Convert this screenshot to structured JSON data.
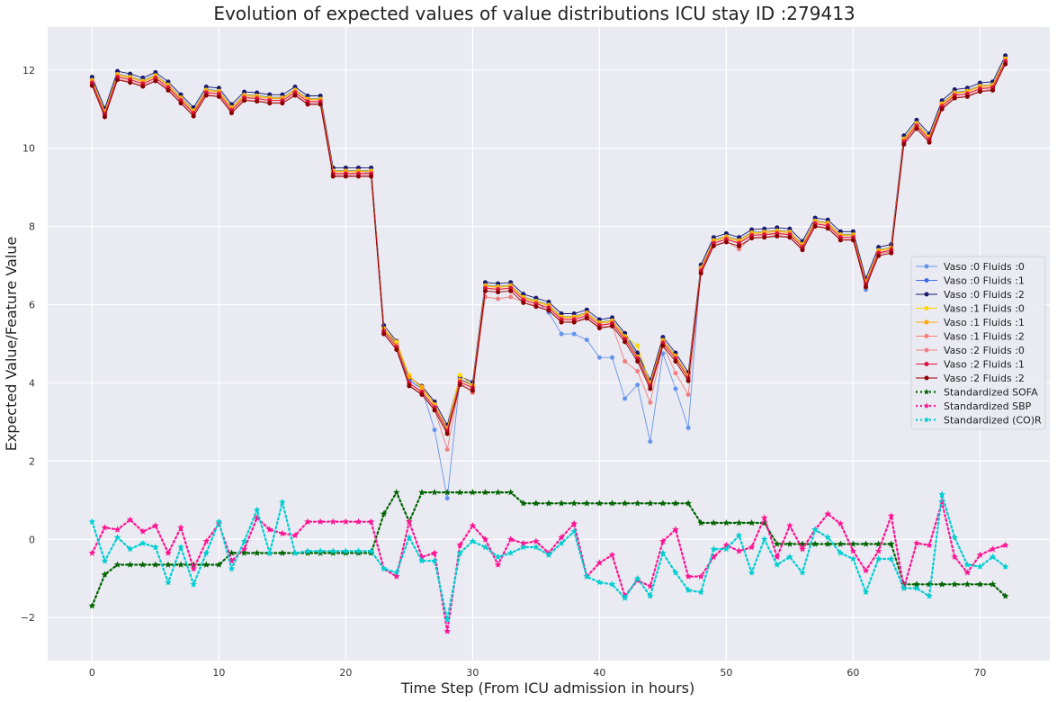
{
  "chart_data": {
    "type": "line",
    "title": "Evolution of expected values of value distributions ICU stay ID :279413",
    "xlabel": "Time Step (From ICU admission in hours)",
    "ylabel": "Expected Value/Feature Value",
    "xlim": [
      -3.5,
      75.5
    ],
    "ylim": [
      -3.1,
      13.1
    ],
    "xticks": [
      0,
      10,
      20,
      30,
      40,
      50,
      60,
      70
    ],
    "yticks": [
      -2,
      0,
      2,
      4,
      6,
      8,
      10,
      12
    ],
    "ytick_labels": [
      "−2",
      "0",
      "2",
      "4",
      "6",
      "8",
      "10",
      "12"
    ],
    "grid": true,
    "legend_position": "right",
    "base_expected": [
      11.7,
      10.9,
      11.85,
      11.78,
      11.68,
      11.82,
      11.58,
      11.25,
      10.92,
      11.45,
      11.42,
      11.0,
      11.32,
      11.3,
      11.25,
      11.25,
      11.45,
      11.22,
      11.22,
      9.38,
      9.38,
      9.38,
      9.38,
      5.35,
      4.95,
      4.02,
      3.8,
      3.4,
      2.8,
      4.05,
      3.9,
      6.45,
      6.42,
      6.45,
      6.15,
      6.05,
      5.95,
      5.65,
      5.65,
      5.75,
      5.5,
      5.55,
      5.15,
      4.65,
      3.95,
      5.05,
      4.65,
      4.15,
      6.9,
      7.6,
      7.7,
      7.6,
      7.8,
      7.82,
      7.85,
      7.82,
      7.5,
      8.1,
      8.05,
      7.75,
      7.75,
      6.55,
      7.35,
      7.42,
      10.2,
      10.6,
      10.25,
      11.1,
      11.38,
      11.42,
      11.55,
      11.58,
      12.25
    ],
    "series": [
      {
        "name": "Vaso :0 Fluids :0",
        "color": "#6495ED",
        "offset": 0.05,
        "overrides": {
          "22": 9.35,
          "36": 5.8,
          "37": 5.25,
          "38": 5.25,
          "39": 5.1,
          "40": 4.65,
          "41": 4.65,
          "42": 3.6,
          "43": 3.95,
          "44": 2.5,
          "45": 4.75,
          "46": 3.85,
          "47": 2.85,
          "28": 1.05,
          "27": 2.8,
          "61": 6.38
        },
        "linestyle": "solid",
        "marker": "circle"
      },
      {
        "name": "Vaso :0 Fluids :1",
        "color": "#4169E1",
        "offset": 0.05,
        "overrides": {},
        "linestyle": "solid",
        "marker": "circle"
      },
      {
        "name": "Vaso :0 Fluids :2",
        "color": "#191970",
        "offset": 0.12,
        "overrides": {},
        "linestyle": "solid",
        "marker": "circle"
      },
      {
        "name": "Vaso :1 Fluids :0",
        "color": "#FFD700",
        "offset": 0.04,
        "overrides": {
          "29": 4.2,
          "24": 5.05,
          "25": 4.2,
          "43": 4.95
        },
        "linestyle": "solid",
        "marker": "circle"
      },
      {
        "name": "Vaso :1 Fluids :1",
        "color": "#FFA500",
        "offset": 0.02,
        "overrides": {
          "25": 4.15,
          "26": 3.9,
          "27": 3.45
        },
        "linestyle": "solid",
        "marker": "circle"
      },
      {
        "name": "Vaso :1 Fluids :2",
        "color": "#FA8072",
        "offset": -0.02,
        "overrides": {},
        "linestyle": "solid",
        "marker": "circle"
      },
      {
        "name": "Vaso :2 Fluids :0",
        "color": "#F08080",
        "offset": -0.08,
        "overrides": {
          "28": 2.3,
          "29": 4.0,
          "30": 3.75,
          "31": 6.2,
          "32": 6.15,
          "33": 6.2,
          "42": 4.55,
          "43": 4.3,
          "44": 3.5,
          "46": 4.25,
          "47": 3.7,
          "51": 7.42,
          "61": 6.45,
          "62": 7.3,
          "63": 7.35
        },
        "linestyle": "solid",
        "marker": "circle"
      },
      {
        "name": "Vaso :2 Fluids :1",
        "color": "#DC143C",
        "offset": -0.03,
        "overrides": {},
        "linestyle": "solid",
        "marker": "circle"
      },
      {
        "name": "Vaso :2 Fluids :2",
        "color": "#8B0000",
        "offset": -0.1,
        "overrides": {},
        "linestyle": "solid",
        "marker": "circle"
      },
      {
        "name": "Standardized SOFA",
        "color": "#006400",
        "linestyle": "dotted",
        "marker": "star",
        "values": [
          -1.7,
          -0.9,
          -0.65,
          -0.65,
          -0.65,
          -0.65,
          -0.65,
          -0.65,
          -0.65,
          -0.65,
          -0.65,
          -0.35,
          -0.35,
          -0.35,
          -0.35,
          -0.35,
          -0.35,
          -0.35,
          -0.35,
          -0.35,
          -0.35,
          -0.35,
          -0.35,
          0.65,
          1.2,
          0.45,
          1.2,
          1.2,
          1.2,
          1.2,
          1.2,
          1.2,
          1.2,
          1.2,
          0.92,
          0.92,
          0.92,
          0.92,
          0.92,
          0.92,
          0.92,
          0.92,
          0.92,
          0.92,
          0.92,
          0.92,
          0.92,
          0.92,
          0.42,
          0.42,
          0.42,
          0.42,
          0.42,
          0.42,
          -0.12,
          -0.12,
          -0.12,
          -0.12,
          -0.12,
          -0.12,
          -0.12,
          -0.12,
          -0.12,
          -0.12,
          -1.15,
          -1.15,
          -1.15,
          -1.15,
          -1.15,
          -1.15,
          -1.15,
          -1.15,
          -1.45
        ]
      },
      {
        "name": "Standardized SBP",
        "color": "#FF1493",
        "linestyle": "dotted",
        "marker": "star",
        "values": [
          -0.35,
          0.3,
          0.25,
          0.5,
          0.2,
          0.35,
          -0.35,
          0.3,
          -0.75,
          -0.05,
          0.4,
          -0.55,
          -0.25,
          0.55,
          0.25,
          0.15,
          0.1,
          0.45,
          0.45,
          0.45,
          0.45,
          0.45,
          0.45,
          -0.75,
          -0.95,
          0.45,
          -0.45,
          -0.35,
          -2.35,
          -0.15,
          0.35,
          0.0,
          -0.65,
          0.0,
          -0.1,
          -0.05,
          -0.35,
          0.05,
          0.4,
          -0.95,
          -0.6,
          -0.4,
          -1.45,
          -1.05,
          -1.2,
          -0.05,
          0.25,
          -0.95,
          -0.95,
          -0.45,
          -0.15,
          -0.3,
          -0.2,
          0.55,
          -0.45,
          0.35,
          -0.25,
          0.25,
          0.65,
          0.4,
          -0.3,
          -0.8,
          -0.3,
          0.6,
          -1.25,
          -0.1,
          -0.15,
          0.95,
          -0.45,
          -0.85,
          -0.4,
          -0.25,
          -0.15
        ]
      },
      {
        "name": "Standardized (CO)R",
        "color": "#00CED1",
        "linestyle": "dotted",
        "marker": "star",
        "values": [
          0.45,
          -0.55,
          0.05,
          -0.25,
          -0.1,
          -0.2,
          -1.1,
          -0.2,
          -1.15,
          -0.35,
          0.45,
          -0.75,
          -0.05,
          0.75,
          -0.35,
          0.95,
          -0.35,
          -0.3,
          -0.3,
          -0.3,
          -0.3,
          -0.3,
          -0.3,
          -0.75,
          -0.85,
          0.05,
          -0.55,
          -0.55,
          -2.05,
          -0.35,
          -0.05,
          -0.2,
          -0.45,
          -0.35,
          -0.2,
          -0.2,
          -0.4,
          -0.1,
          0.2,
          -0.95,
          -1.1,
          -1.15,
          -1.5,
          -1.0,
          -1.45,
          -0.35,
          -0.85,
          -1.3,
          -1.35,
          -0.25,
          -0.25,
          0.1,
          -0.85,
          0.0,
          -0.65,
          -0.45,
          -0.85,
          0.25,
          0.05,
          -0.35,
          -0.5,
          -1.35,
          -0.5,
          -0.5,
          -1.25,
          -1.25,
          -1.45,
          1.15,
          0.05,
          -0.65,
          -0.7,
          -0.45,
          -0.7
        ]
      }
    ]
  },
  "colors": {
    "plot_background": "#EAEAF2",
    "grid": "#FFFFFF",
    "figure_background": "#FFFFFF"
  }
}
